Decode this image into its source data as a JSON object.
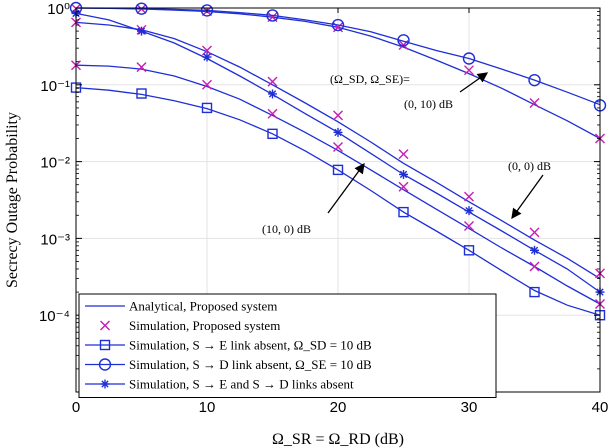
{
  "chart_data": {
    "type": "line",
    "xlabel": "Ω_SR = Ω_RD (dB)",
    "ylabel": "Secrecy Outage Probability",
    "xlim": [
      0,
      40
    ],
    "ylim": [
      1e-05,
      1
    ],
    "yscale": "log",
    "grid": true,
    "xticks": [
      0,
      10,
      20,
      30,
      40
    ],
    "yticks": [
      {
        "value": 1,
        "label": "10⁰"
      },
      {
        "value": 0.1,
        "label": "10⁻¹"
      },
      {
        "value": 0.01,
        "label": "10⁻²"
      },
      {
        "value": 0.001,
        "label": "10⁻³"
      },
      {
        "value": 0.0001,
        "label": "10⁻⁴"
      }
    ],
    "legend_position": "bottom-left",
    "legend": [
      {
        "label": "Analytical, Proposed system",
        "style": "line"
      },
      {
        "label": "Simulation, Proposed system",
        "style": "x"
      },
      {
        "label": "Simulation, S → E link absent, Ω_SD = 10 dB",
        "style": "square"
      },
      {
        "label": "Simulation, S → D link absent, Ω_SE = 10 dB",
        "style": "circle"
      },
      {
        "label": "Simulation, S → E and S → D links absent",
        "style": "star"
      }
    ],
    "annotations": [
      {
        "text": "(Ω_SD, Ω_SE)=",
        "target": null
      },
      {
        "text": "(0, 10) dB",
        "target": "proposed-0-10"
      },
      {
        "text": "(0, 0) dB",
        "target": "proposed-0-0"
      },
      {
        "text": "(10, 0) dB",
        "target": "proposed-10-0"
      }
    ],
    "series": [
      {
        "id": "proposed-0-10",
        "kind": "analytical+sim",
        "analytical_x": [
          0,
          2.5,
          5,
          7.5,
          10,
          12.5,
          15,
          17.5,
          20,
          22.5,
          25,
          27.5,
          30,
          32.5,
          35,
          37.5,
          40
        ],
        "analytical_y": [
          1.0,
          0.99,
          0.97,
          0.94,
          0.9,
          0.84,
          0.76,
          0.67,
          0.56,
          0.43,
          0.31,
          0.21,
          0.14,
          0.09,
          0.055,
          0.034,
          0.02
        ],
        "sim_x": [
          0,
          5,
          10,
          15,
          20,
          25,
          30,
          35,
          40
        ],
        "sim_y": [
          0.98,
          0.97,
          0.91,
          0.76,
          0.56,
          0.33,
          0.155,
          0.058,
          0.02
        ]
      },
      {
        "id": "proposed-0-0",
        "kind": "analytical+sim",
        "analytical_x": [
          0,
          2.5,
          5,
          7.5,
          10,
          12.5,
          15,
          17.5,
          20,
          22.5,
          25,
          27.5,
          30,
          32.5,
          35,
          37.5,
          40
        ],
        "analytical_y": [
          0.65,
          0.6,
          0.52,
          0.4,
          0.27,
          0.17,
          0.1,
          0.058,
          0.033,
          0.018,
          0.0095,
          0.0054,
          0.003,
          0.0017,
          0.00095,
          0.00055,
          0.0003
        ],
        "sim_x": [
          0,
          5,
          10,
          15,
          20,
          25,
          30,
          35,
          40
        ],
        "sim_y": [
          0.65,
          0.52,
          0.28,
          0.11,
          0.04,
          0.0125,
          0.0035,
          0.0012,
          0.00035
        ]
      },
      {
        "id": "proposed-10-0",
        "kind": "analytical+sim",
        "analytical_x": [
          0,
          2.5,
          5,
          7.5,
          10,
          12.5,
          15,
          17.5,
          20,
          22.5,
          25,
          27.5,
          30,
          32.5,
          35,
          37.5,
          40
        ],
        "analytical_y": [
          0.18,
          0.175,
          0.16,
          0.13,
          0.095,
          0.065,
          0.04,
          0.024,
          0.014,
          0.0078,
          0.0043,
          0.0024,
          0.00135,
          0.00075,
          0.00043,
          0.00024,
          0.00014
        ],
        "sim_x": [
          0,
          5,
          10,
          15,
          20,
          25,
          30,
          35,
          40
        ],
        "sim_y": [
          0.18,
          0.17,
          0.1,
          0.042,
          0.0155,
          0.0047,
          0.00145,
          0.00043,
          0.00014
        ]
      },
      {
        "id": "no-se",
        "kind": "square",
        "analytical_x": [
          0,
          2.5,
          5,
          7.5,
          10,
          12.5,
          15,
          17.5,
          20,
          22.5,
          25,
          27.5,
          30,
          32.5,
          35,
          37.5,
          40
        ],
        "analytical_y": [
          0.092,
          0.085,
          0.075,
          0.062,
          0.049,
          0.035,
          0.023,
          0.0138,
          0.0078,
          0.0042,
          0.0022,
          0.00125,
          0.0007,
          0.00038,
          0.00021,
          0.000135,
          0.0001
        ],
        "sim_x": [
          0,
          5,
          10,
          15,
          20,
          25,
          30,
          35,
          40
        ],
        "sim_y": [
          0.092,
          0.077,
          0.05,
          0.023,
          0.0078,
          0.0022,
          0.0007,
          0.0002,
          0.0001
        ]
      },
      {
        "id": "no-sd",
        "kind": "circle",
        "analytical_x": [
          0,
          2.5,
          5,
          7.5,
          10,
          12.5,
          15,
          17.5,
          20,
          22.5,
          25,
          27.5,
          30,
          32.5,
          35,
          37.5,
          40
        ],
        "analytical_y": [
          1.0,
          0.995,
          0.98,
          0.96,
          0.93,
          0.87,
          0.8,
          0.7,
          0.6,
          0.49,
          0.37,
          0.28,
          0.22,
          0.16,
          0.115,
          0.08,
          0.055
        ],
        "sim_x": [
          0,
          5,
          10,
          15,
          20,
          25,
          30,
          35,
          40
        ],
        "sim_y": [
          1.0,
          0.98,
          0.93,
          0.8,
          0.6,
          0.38,
          0.22,
          0.115,
          0.054
        ]
      },
      {
        "id": "no-se-sd",
        "kind": "star",
        "analytical_x": [
          0,
          2.5,
          5,
          7.5,
          10,
          12.5,
          15,
          17.5,
          20,
          22.5,
          25,
          27.5,
          30,
          32.5,
          35,
          37.5,
          40
        ],
        "analytical_y": [
          0.85,
          0.7,
          0.5,
          0.35,
          0.22,
          0.13,
          0.075,
          0.042,
          0.024,
          0.0128,
          0.0068,
          0.0039,
          0.0022,
          0.00125,
          0.0007,
          0.0004,
          0.0002
        ],
        "sim_x": [
          0,
          5,
          10,
          15,
          20,
          25,
          30,
          35,
          40
        ],
        "sim_y": [
          0.85,
          0.5,
          0.23,
          0.076,
          0.024,
          0.0068,
          0.0023,
          0.0007,
          0.0002
        ]
      }
    ]
  }
}
